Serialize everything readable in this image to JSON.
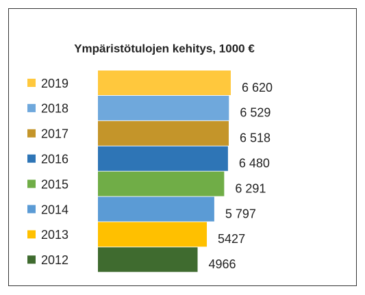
{
  "chart_data": {
    "type": "bar",
    "orientation": "horizontal",
    "title": "Ympäristötulojen kehitys, 1000 €",
    "categories": [
      "2019",
      "2018",
      "2017",
      "2016",
      "2015",
      "2014",
      "2013",
      "2012"
    ],
    "values": [
      6620,
      6529,
      6518,
      6480,
      6291,
      5797,
      5427,
      4966
    ],
    "value_labels": [
      "6 620",
      "6 529",
      "6 518",
      "6 480",
      "6 291",
      "5 797",
      "5427",
      "4966"
    ],
    "colors": [
      "#FFC83D",
      "#6FA8DC",
      "#C4952A",
      "#2E75B6",
      "#70AD47",
      "#5B9BD5",
      "#FFC000",
      "#3F6B2F"
    ]
  }
}
